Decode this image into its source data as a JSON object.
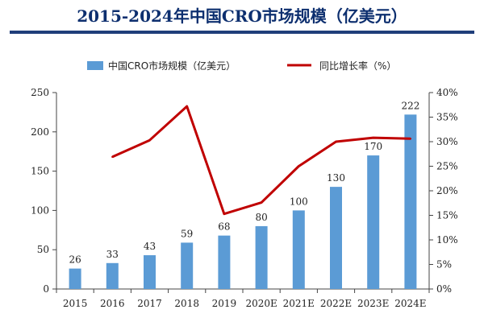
{
  "title": "2015-2024年中国CRO市场规模（亿美元）",
  "colors": {
    "bar": "#5b9bd5",
    "line": "#c00000",
    "title": "#0d2f6f",
    "rule": "#1f3e7a"
  },
  "chart_data": {
    "type": "bar",
    "title": "2015-2024年中国CRO市场规模（亿美元）",
    "categories": [
      "2015",
      "2016",
      "2017",
      "2018",
      "2019",
      "2020E",
      "2021E",
      "2022E",
      "2023E",
      "2024E"
    ],
    "series": [
      {
        "name": "中国CRO市场规模（亿美元）",
        "type": "bar",
        "axis": "left",
        "values": [
          26,
          33,
          43,
          59,
          68,
          80,
          100,
          130,
          170,
          222
        ]
      },
      {
        "name": "同比增长率（%）",
        "type": "line",
        "axis": "right",
        "values": [
          null,
          26.9,
          30.3,
          37.2,
          15.3,
          17.6,
          25.0,
          30.0,
          30.8,
          30.6
        ]
      }
    ],
    "ylim_left": [
      0,
      250
    ],
    "yticks_left": [
      "0",
      "50",
      "100",
      "150",
      "200",
      "250"
    ],
    "ylim_right": [
      0,
      40
    ],
    "yticks_right": [
      "0%",
      "5%",
      "10%",
      "15%",
      "20%",
      "25%",
      "30%",
      "35%",
      "40%"
    ],
    "legend_position": "top",
    "grid": false
  }
}
